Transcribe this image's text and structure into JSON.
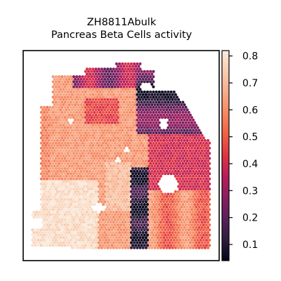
{
  "chart_data": {
    "type": "heatmap",
    "title_lines": [
      "ZH8811Abulk",
      "Pancreas Beta Cells activity"
    ],
    "xlabel": "",
    "ylabel": "",
    "grid": false,
    "colormap": "rocket",
    "color_range": [
      0.04,
      0.82
    ],
    "colorbar": {
      "ticks": [
        0.1,
        0.2,
        0.3,
        0.4,
        0.5,
        0.6,
        0.7,
        0.8
      ],
      "tick_labels": [
        "0.1",
        "0.2",
        "0.3",
        "0.4",
        "0.5",
        "0.6",
        "0.7",
        "0.8"
      ]
    },
    "spot_value_summary": [
      {
        "region": "lower-left lobe",
        "value": 0.78
      },
      {
        "region": "left edge",
        "value": 0.6
      },
      {
        "region": "center",
        "value": 0.68
      },
      {
        "region": "upper band",
        "value": 0.35
      },
      {
        "region": "central vertical stripe",
        "value": 0.12
      },
      {
        "region": "right side",
        "value": 0.55
      }
    ]
  },
  "colors": {
    "cmap_stops": [
      "#03051a",
      "#2e1e3c",
      "#5c1f5b",
      "#8a1e5f",
      "#b91c5b",
      "#e13342",
      "#f06043",
      "#f58860",
      "#f7ab88",
      "#f8cdb0",
      "#faebdd"
    ]
  }
}
